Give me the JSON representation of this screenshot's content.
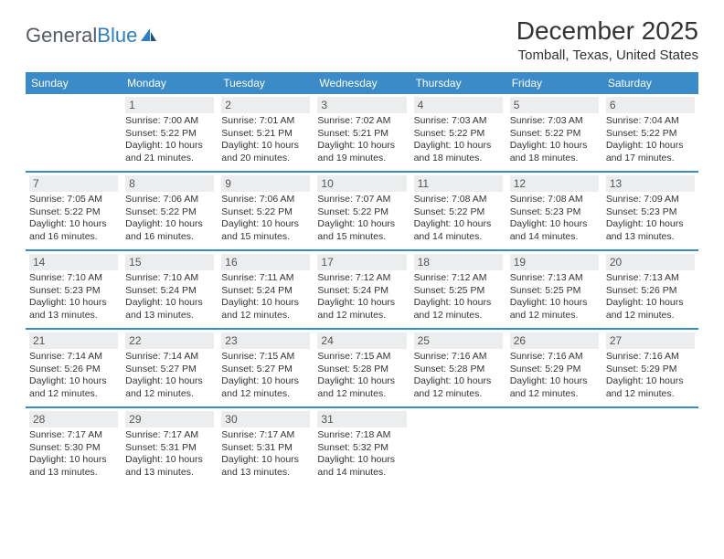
{
  "logo": {
    "text1": "General",
    "text2": "Blue"
  },
  "title": "December 2025",
  "location": "Tomball, Texas, United States",
  "colors": {
    "header_bg": "#3b8bc9",
    "header_text": "#ffffff",
    "daynum_bg": "#ecedee",
    "week_divider": "#3b8bc9",
    "body_text": "#333333",
    "logo_gray": "#555b61",
    "logo_blue": "#2d7fc1"
  },
  "weekdays": [
    "Sunday",
    "Monday",
    "Tuesday",
    "Wednesday",
    "Thursday",
    "Friday",
    "Saturday"
  ],
  "weeks": [
    [
      {
        "empty": true
      },
      {
        "n": "1",
        "sr": "7:00 AM",
        "ss": "5:22 PM",
        "dh": "10",
        "dm": "21"
      },
      {
        "n": "2",
        "sr": "7:01 AM",
        "ss": "5:21 PM",
        "dh": "10",
        "dm": "20"
      },
      {
        "n": "3",
        "sr": "7:02 AM",
        "ss": "5:21 PM",
        "dh": "10",
        "dm": "19"
      },
      {
        "n": "4",
        "sr": "7:03 AM",
        "ss": "5:22 PM",
        "dh": "10",
        "dm": "18"
      },
      {
        "n": "5",
        "sr": "7:03 AM",
        "ss": "5:22 PM",
        "dh": "10",
        "dm": "18"
      },
      {
        "n": "6",
        "sr": "7:04 AM",
        "ss": "5:22 PM",
        "dh": "10",
        "dm": "17"
      }
    ],
    [
      {
        "n": "7",
        "sr": "7:05 AM",
        "ss": "5:22 PM",
        "dh": "10",
        "dm": "16"
      },
      {
        "n": "8",
        "sr": "7:06 AM",
        "ss": "5:22 PM",
        "dh": "10",
        "dm": "16"
      },
      {
        "n": "9",
        "sr": "7:06 AM",
        "ss": "5:22 PM",
        "dh": "10",
        "dm": "15"
      },
      {
        "n": "10",
        "sr": "7:07 AM",
        "ss": "5:22 PM",
        "dh": "10",
        "dm": "15"
      },
      {
        "n": "11",
        "sr": "7:08 AM",
        "ss": "5:22 PM",
        "dh": "10",
        "dm": "14"
      },
      {
        "n": "12",
        "sr": "7:08 AM",
        "ss": "5:23 PM",
        "dh": "10",
        "dm": "14"
      },
      {
        "n": "13",
        "sr": "7:09 AM",
        "ss": "5:23 PM",
        "dh": "10",
        "dm": "13"
      }
    ],
    [
      {
        "n": "14",
        "sr": "7:10 AM",
        "ss": "5:23 PM",
        "dh": "10",
        "dm": "13"
      },
      {
        "n": "15",
        "sr": "7:10 AM",
        "ss": "5:24 PM",
        "dh": "10",
        "dm": "13"
      },
      {
        "n": "16",
        "sr": "7:11 AM",
        "ss": "5:24 PM",
        "dh": "10",
        "dm": "12"
      },
      {
        "n": "17",
        "sr": "7:12 AM",
        "ss": "5:24 PM",
        "dh": "10",
        "dm": "12"
      },
      {
        "n": "18",
        "sr": "7:12 AM",
        "ss": "5:25 PM",
        "dh": "10",
        "dm": "12"
      },
      {
        "n": "19",
        "sr": "7:13 AM",
        "ss": "5:25 PM",
        "dh": "10",
        "dm": "12"
      },
      {
        "n": "20",
        "sr": "7:13 AM",
        "ss": "5:26 PM",
        "dh": "10",
        "dm": "12"
      }
    ],
    [
      {
        "n": "21",
        "sr": "7:14 AM",
        "ss": "5:26 PM",
        "dh": "10",
        "dm": "12"
      },
      {
        "n": "22",
        "sr": "7:14 AM",
        "ss": "5:27 PM",
        "dh": "10",
        "dm": "12"
      },
      {
        "n": "23",
        "sr": "7:15 AM",
        "ss": "5:27 PM",
        "dh": "10",
        "dm": "12"
      },
      {
        "n": "24",
        "sr": "7:15 AM",
        "ss": "5:28 PM",
        "dh": "10",
        "dm": "12"
      },
      {
        "n": "25",
        "sr": "7:16 AM",
        "ss": "5:28 PM",
        "dh": "10",
        "dm": "12"
      },
      {
        "n": "26",
        "sr": "7:16 AM",
        "ss": "5:29 PM",
        "dh": "10",
        "dm": "12"
      },
      {
        "n": "27",
        "sr": "7:16 AM",
        "ss": "5:29 PM",
        "dh": "10",
        "dm": "12"
      }
    ],
    [
      {
        "n": "28",
        "sr": "7:17 AM",
        "ss": "5:30 PM",
        "dh": "10",
        "dm": "13"
      },
      {
        "n": "29",
        "sr": "7:17 AM",
        "ss": "5:31 PM",
        "dh": "10",
        "dm": "13"
      },
      {
        "n": "30",
        "sr": "7:17 AM",
        "ss": "5:31 PM",
        "dh": "10",
        "dm": "13"
      },
      {
        "n": "31",
        "sr": "7:18 AM",
        "ss": "5:32 PM",
        "dh": "10",
        "dm": "14"
      },
      {
        "empty": true
      },
      {
        "empty": true
      },
      {
        "empty": true
      }
    ]
  ],
  "labels": {
    "sunrise": "Sunrise:",
    "sunset": "Sunset:",
    "daylight1": "Daylight:",
    "hours": "hours",
    "and": "and",
    "minutes": "minutes."
  }
}
